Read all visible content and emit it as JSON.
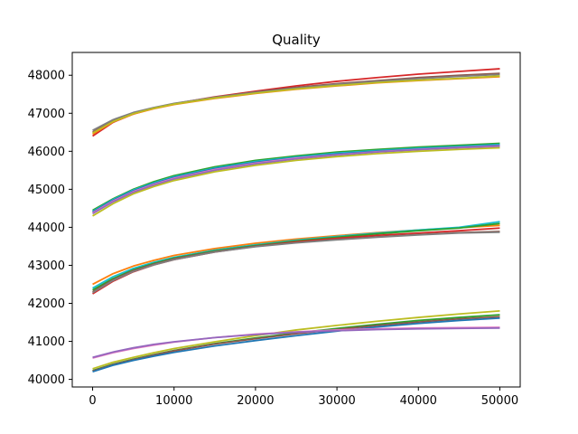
{
  "chart_data": {
    "type": "line",
    "title": "Quality",
    "xlabel": "",
    "ylabel": "",
    "xlim": [
      -2500,
      52500
    ],
    "ylim": [
      39800,
      48600
    ],
    "xticks": [
      0,
      10000,
      20000,
      30000,
      40000,
      50000
    ],
    "yticks": [
      40000,
      41000,
      42000,
      43000,
      44000,
      45000,
      46000,
      47000,
      48000
    ],
    "grid": false,
    "x": [
      0,
      2500,
      5000,
      7500,
      10000,
      15000,
      20000,
      25000,
      30000,
      35000,
      40000,
      45000,
      50000
    ],
    "series": [
      {
        "color": "#d62728",
        "values": [
          46400,
          46760,
          46980,
          47130,
          47250,
          47430,
          47580,
          47720,
          47840,
          47940,
          48030,
          48100,
          48170
        ]
      },
      {
        "color": "#8c564b",
        "values": [
          46500,
          46800,
          47000,
          47140,
          47250,
          47420,
          47560,
          47680,
          47780,
          47860,
          47940,
          48000,
          48050
        ]
      },
      {
        "color": "#7f7f7f",
        "values": [
          46550,
          46830,
          47020,
          47150,
          47260,
          47420,
          47550,
          47660,
          47760,
          47840,
          47910,
          47970,
          48020
        ]
      },
      {
        "color": "#ff7f0e",
        "values": [
          46450,
          46770,
          46980,
          47120,
          47230,
          47390,
          47520,
          47630,
          47720,
          47800,
          47860,
          47910,
          47960
        ]
      },
      {
        "color": "#bcbd22",
        "values": [
          46480,
          46780,
          46990,
          47130,
          47240,
          47400,
          47530,
          47640,
          47730,
          47810,
          47870,
          47920,
          47980
        ]
      },
      {
        "color": "#2ca02c",
        "values": [
          44450,
          44750,
          45000,
          45200,
          45360,
          45590,
          45760,
          45880,
          45980,
          46050,
          46110,
          46160,
          46210
        ]
      },
      {
        "color": "#17becf",
        "values": [
          44420,
          44730,
          44980,
          45170,
          45330,
          45560,
          45730,
          45850,
          45950,
          46020,
          46080,
          46130,
          46180
        ]
      },
      {
        "color": "#1f77b4",
        "values": [
          44400,
          44710,
          44960,
          45150,
          45310,
          45540,
          45710,
          45830,
          45930,
          46000,
          46060,
          46110,
          46160
        ]
      },
      {
        "color": "#e377c2",
        "values": [
          44380,
          44690,
          44940,
          45130,
          45290,
          45520,
          45690,
          45820,
          45910,
          45990,
          46050,
          46100,
          46140
        ]
      },
      {
        "color": "#9467bd",
        "values": [
          44360,
          44670,
          44920,
          45110,
          45270,
          45500,
          45670,
          45800,
          45900,
          45980,
          46040,
          46090,
          46130
        ]
      },
      {
        "color": "#bcbd22",
        "values": [
          44300,
          44620,
          44880,
          45070,
          45230,
          45460,
          45630,
          45760,
          45860,
          45940,
          46000,
          46050,
          46090
        ]
      },
      {
        "color": "#ff7f0e",
        "values": [
          42500,
          42780,
          42980,
          43130,
          43260,
          43440,
          43580,
          43690,
          43780,
          43860,
          43930,
          43990,
          44050
        ]
      },
      {
        "color": "#17becf",
        "values": [
          42400,
          42700,
          42920,
          43080,
          43210,
          43400,
          43540,
          43660,
          43760,
          43850,
          43930,
          44000,
          44150
        ]
      },
      {
        "color": "#2ca02c",
        "values": [
          42350,
          42650,
          42880,
          43050,
          43190,
          43380,
          43520,
          43640,
          43740,
          43830,
          43910,
          43980,
          44100
        ]
      },
      {
        "color": "#d62728",
        "values": [
          42250,
          42580,
          42830,
          43010,
          43150,
          43350,
          43500,
          43620,
          43710,
          43790,
          43850,
          43910,
          43980
        ]
      },
      {
        "color": "#8c564b",
        "values": [
          42300,
          42620,
          42860,
          43030,
          43170,
          43360,
          43500,
          43600,
          43680,
          43750,
          43810,
          43860,
          43890
        ]
      },
      {
        "color": "#7f7f7f",
        "values": [
          42280,
          42600,
          42840,
          43010,
          43150,
          43350,
          43490,
          43590,
          43670,
          43740,
          43800,
          43850,
          43870
        ]
      },
      {
        "color": "#bcbd22",
        "values": [
          40280,
          40450,
          40580,
          40700,
          40810,
          40990,
          41150,
          41300,
          41420,
          41530,
          41630,
          41720,
          41800
        ]
      },
      {
        "color": "#2ca02c",
        "values": [
          40230,
          40400,
          40530,
          40650,
          40760,
          40940,
          41090,
          41220,
          41340,
          41450,
          41550,
          41630,
          41700
        ]
      },
      {
        "color": "#8c564b",
        "values": [
          40220,
          40390,
          40520,
          40640,
          40750,
          40930,
          41070,
          41200,
          41310,
          41420,
          41510,
          41590,
          41650
        ]
      },
      {
        "color": "#1f77b4",
        "values": [
          40200,
          40370,
          40500,
          40610,
          40710,
          40880,
          41020,
          41150,
          41270,
          41380,
          41470,
          41550,
          41610
        ]
      },
      {
        "color": "#e377c2",
        "values": [
          40560,
          40700,
          40810,
          40900,
          40980,
          41100,
          41190,
          41250,
          41300,
          41330,
          41350,
          41360,
          41370
        ]
      },
      {
        "color": "#9467bd",
        "values": [
          40580,
          40720,
          40830,
          40920,
          40990,
          41100,
          41180,
          41240,
          41280,
          41310,
          41330,
          41340,
          41350
        ]
      }
    ]
  }
}
